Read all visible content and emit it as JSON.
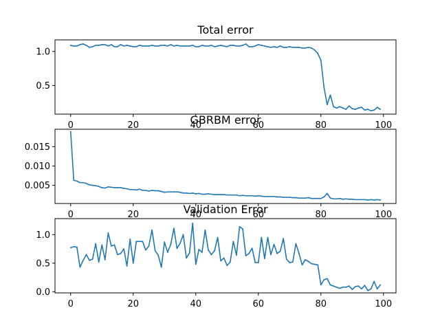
{
  "chart_data": [
    {
      "type": "line",
      "title": "Total error",
      "xlabel": "",
      "ylabel": "",
      "xlim": [
        -5,
        104
      ],
      "ylim": [
        0.08,
        1.17
      ],
      "xticks": [
        0,
        20,
        40,
        60,
        80,
        100
      ],
      "xtick_labels": [
        "0",
        "20",
        "40",
        "60",
        "80",
        "100"
      ],
      "yticks": [
        0.5,
        1.0
      ],
      "ytick_labels": [
        "0.5",
        "1.0"
      ],
      "grid": false,
      "color": "#1f77b4",
      "series": [
        {
          "x": [
            0,
            1,
            2,
            3,
            4,
            5,
            6,
            7,
            8,
            9,
            10,
            11,
            12,
            13,
            14,
            15,
            16,
            17,
            18,
            19,
            20,
            21,
            22,
            23,
            24,
            25,
            26,
            27,
            28,
            29,
            30,
            31,
            32,
            33,
            34,
            35,
            36,
            37,
            38,
            39,
            40,
            41,
            42,
            43,
            44,
            45,
            46,
            47,
            48,
            49,
            50,
            51,
            52,
            53,
            54,
            55,
            56,
            57,
            58,
            59,
            60,
            61,
            62,
            63,
            64,
            65,
            66,
            67,
            68,
            69,
            70,
            71,
            72,
            73,
            74,
            75,
            76,
            77,
            78,
            79,
            80,
            81,
            82,
            83,
            84,
            85,
            86,
            87,
            88,
            89,
            90,
            91,
            92,
            93,
            94,
            95,
            96,
            97,
            98,
            99
          ],
          "values": [
            1.09,
            1.08,
            1.08,
            1.1,
            1.11,
            1.09,
            1.06,
            1.07,
            1.09,
            1.09,
            1.1,
            1.1,
            1.08,
            1.1,
            1.07,
            1.07,
            1.1,
            1.08,
            1.09,
            1.08,
            1.07,
            1.07,
            1.09,
            1.08,
            1.08,
            1.08,
            1.09,
            1.08,
            1.08,
            1.09,
            1.09,
            1.08,
            1.1,
            1.08,
            1.09,
            1.08,
            1.08,
            1.08,
            1.08,
            1.09,
            1.07,
            1.07,
            1.09,
            1.08,
            1.08,
            1.09,
            1.07,
            1.08,
            1.09,
            1.08,
            1.07,
            1.09,
            1.09,
            1.08,
            1.08,
            1.09,
            1.11,
            1.07,
            1.07,
            1.08,
            1.1,
            1.09,
            1.08,
            1.07,
            1.06,
            1.07,
            1.06,
            1.08,
            1.06,
            1.06,
            1.07,
            1.06,
            1.06,
            1.06,
            1.05,
            1.05,
            1.06,
            1.05,
            1.02,
            0.97,
            0.87,
            0.47,
            0.22,
            0.36,
            0.19,
            0.17,
            0.19,
            0.17,
            0.15,
            0.2,
            0.16,
            0.15,
            0.17,
            0.18,
            0.14,
            0.15,
            0.13,
            0.14,
            0.18,
            0.15
          ]
        }
      ]
    },
    {
      "type": "line",
      "title": "GBRBM error",
      "xlabel": "",
      "ylabel": "",
      "xlim": [
        -5,
        104
      ],
      "ylim": [
        0.0003,
        0.0195
      ],
      "xticks": [
        0,
        20,
        40,
        60,
        80,
        100
      ],
      "xtick_labels": [
        "0",
        "20",
        "40",
        "60",
        "80",
        "100"
      ],
      "yticks": [
        0.005,
        0.01,
        0.015
      ],
      "ytick_labels": [
        "0.005",
        "0.010",
        "0.015"
      ],
      "grid": false,
      "color": "#1f77b4",
      "series": [
        {
          "x": [
            0,
            1,
            2,
            3,
            4,
            5,
            6,
            7,
            8,
            9,
            10,
            11,
            12,
            13,
            14,
            15,
            16,
            17,
            18,
            19,
            20,
            21,
            22,
            23,
            24,
            25,
            26,
            27,
            28,
            29,
            30,
            31,
            32,
            33,
            34,
            35,
            36,
            37,
            38,
            39,
            40,
            41,
            42,
            43,
            44,
            45,
            46,
            47,
            48,
            49,
            50,
            51,
            52,
            53,
            54,
            55,
            56,
            57,
            58,
            59,
            60,
            61,
            62,
            63,
            64,
            65,
            66,
            67,
            68,
            69,
            70,
            71,
            72,
            73,
            74,
            75,
            76,
            77,
            78,
            79,
            80,
            81,
            82,
            83,
            84,
            85,
            86,
            87,
            88,
            89,
            90,
            91,
            92,
            93,
            94,
            95,
            96,
            97,
            98,
            99
          ],
          "values": [
            0.0189,
            0.0063,
            0.0061,
            0.0057,
            0.0057,
            0.0055,
            0.0051,
            0.005,
            0.0049,
            0.0047,
            0.0044,
            0.0043,
            0.0046,
            0.0045,
            0.0044,
            0.0044,
            0.0044,
            0.0042,
            0.0041,
            0.0039,
            0.0039,
            0.0038,
            0.004,
            0.0037,
            0.0037,
            0.0035,
            0.0037,
            0.0036,
            0.0036,
            0.0034,
            0.0032,
            0.0033,
            0.0033,
            0.0033,
            0.0033,
            0.0032,
            0.003,
            0.003,
            0.0029,
            0.003,
            0.0028,
            0.0029,
            0.0027,
            0.0027,
            0.0028,
            0.0027,
            0.0026,
            0.0026,
            0.0026,
            0.0026,
            0.0025,
            0.0025,
            0.0025,
            0.0025,
            0.0023,
            0.0024,
            0.0023,
            0.0023,
            0.0023,
            0.0022,
            0.0023,
            0.0022,
            0.0021,
            0.0021,
            0.0021,
            0.0021,
            0.002,
            0.002,
            0.0019,
            0.0019,
            0.0019,
            0.0018,
            0.0018,
            0.0017,
            0.0017,
            0.0017,
            0.0018,
            0.0016,
            0.0016,
            0.0016,
            0.0016,
            0.002,
            0.0029,
            0.0017,
            0.0015,
            0.0015,
            0.0016,
            0.0014,
            0.0015,
            0.0014,
            0.0014,
            0.0013,
            0.0013,
            0.0013,
            0.0013,
            0.0012,
            0.0013,
            0.0012,
            0.0013,
            0.0012
          ]
        }
      ]
    },
    {
      "type": "line",
      "title": "Validation Error",
      "xlabel": "",
      "ylabel": "",
      "xlim": [
        -5,
        104
      ],
      "ylim": [
        -0.02,
        1.28
      ],
      "xticks": [
        0,
        20,
        40,
        60,
        80,
        100
      ],
      "xtick_labels": [
        "0",
        "20",
        "40",
        "60",
        "80",
        "100"
      ],
      "yticks": [
        0.0,
        0.5,
        1.0
      ],
      "ytick_labels": [
        "0.0",
        "0.5",
        "1.0"
      ],
      "grid": false,
      "color": "#1f77b4",
      "series": [
        {
          "x": [
            0,
            1,
            2,
            3,
            4,
            5,
            6,
            7,
            8,
            9,
            10,
            11,
            12,
            13,
            14,
            15,
            16,
            17,
            18,
            19,
            20,
            21,
            22,
            23,
            24,
            25,
            26,
            27,
            28,
            29,
            30,
            31,
            32,
            33,
            34,
            35,
            36,
            37,
            38,
            39,
            40,
            41,
            42,
            43,
            44,
            45,
            46,
            47,
            48,
            49,
            50,
            51,
            52,
            53,
            54,
            55,
            56,
            57,
            58,
            59,
            60,
            61,
            62,
            63,
            64,
            65,
            66,
            67,
            68,
            69,
            70,
            71,
            72,
            73,
            74,
            75,
            76,
            77,
            78,
            79,
            80,
            81,
            82,
            83,
            84,
            85,
            86,
            87,
            88,
            89,
            90,
            91,
            92,
            93,
            94,
            95,
            96,
            97,
            98,
            99
          ],
          "values": [
            0.77,
            0.79,
            0.78,
            0.43,
            0.55,
            0.65,
            0.55,
            0.57,
            0.84,
            0.52,
            0.82,
            0.56,
            1.03,
            0.8,
            0.82,
            0.65,
            0.67,
            0.75,
            0.45,
            0.92,
            0.5,
            0.88,
            0.88,
            0.88,
            0.73,
            0.8,
            1.08,
            0.72,
            0.64,
            0.43,
            0.87,
            0.69,
            0.83,
            1.11,
            0.76,
            0.85,
            1.0,
            0.59,
            0.68,
            1.2,
            0.48,
            0.74,
            0.69,
            1.08,
            0.73,
            0.65,
            0.72,
            0.95,
            0.54,
            0.59,
            0.46,
            0.52,
            0.88,
            0.64,
            1.14,
            1.1,
            0.63,
            0.67,
            0.76,
            0.51,
            0.51,
            0.95,
            0.58,
            0.95,
            0.65,
            0.83,
            0.67,
            0.71,
            0.93,
            0.57,
            0.51,
            0.52,
            0.84,
            0.67,
            0.47,
            0.56,
            0.53,
            0.49,
            0.48,
            0.47,
            0.12,
            0.21,
            0.23,
            0.12,
            0.1,
            0.08,
            0.06,
            0.08,
            0.08,
            0.1,
            0.04,
            0.09,
            0.1,
            0.05,
            0.11,
            0.02,
            0.05,
            0.18,
            0.05,
            0.12
          ]
        }
      ]
    }
  ]
}
